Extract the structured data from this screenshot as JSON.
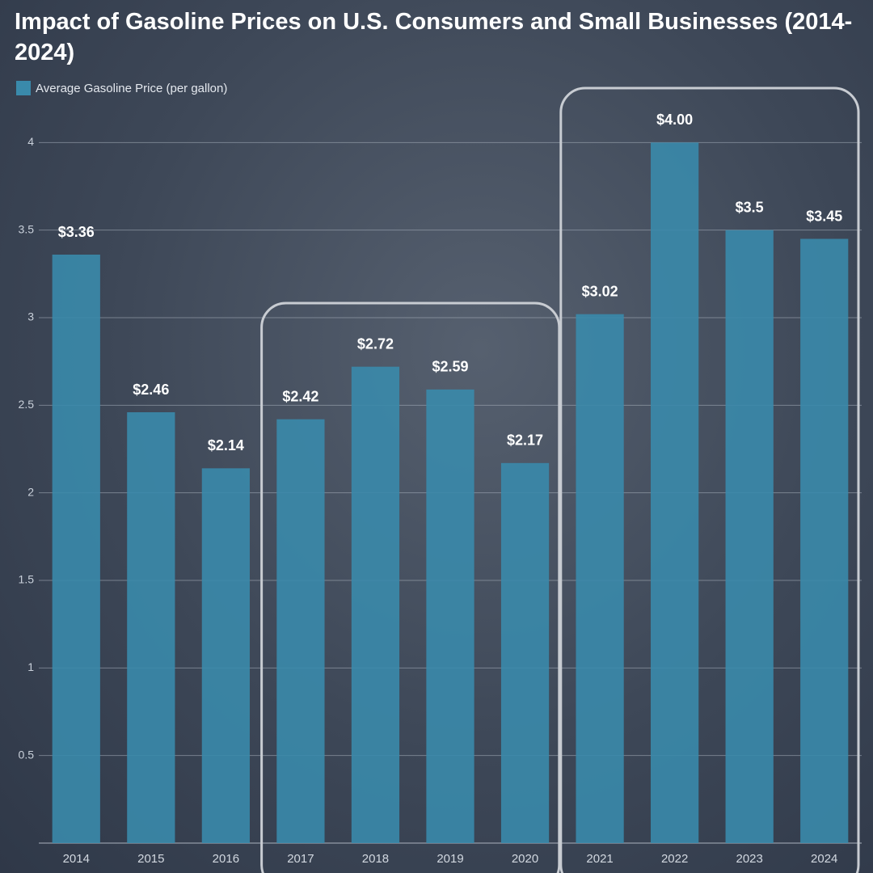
{
  "chart_data": {
    "type": "bar",
    "title": "Impact of Gasoline Prices on U.S. Consumers and Small Businesses (2014-2024)",
    "categories": [
      "2014",
      "2015",
      "2016",
      "2017",
      "2018",
      "2019",
      "2020",
      "2021",
      "2022",
      "2023",
      "2024"
    ],
    "series": [
      {
        "name": "Average Gasoline Price (per gallon)",
        "color": "#3a8aab",
        "values": [
          3.36,
          2.46,
          2.14,
          2.42,
          2.72,
          2.59,
          2.17,
          3.02,
          4.0,
          3.5,
          3.45
        ],
        "value_labels": [
          "$3.36",
          "$2.46",
          "$2.14",
          "$2.42",
          "$2.72",
          "$2.59",
          "$2.17",
          "$3.02",
          "$4.00",
          "$3.5",
          "$3.45"
        ]
      }
    ],
    "ylim": [
      0,
      4.2
    ],
    "yticks": [
      0.5,
      1,
      1.5,
      2,
      2.5,
      3,
      3.5,
      4
    ],
    "grid": true,
    "legend": "top-left"
  }
}
